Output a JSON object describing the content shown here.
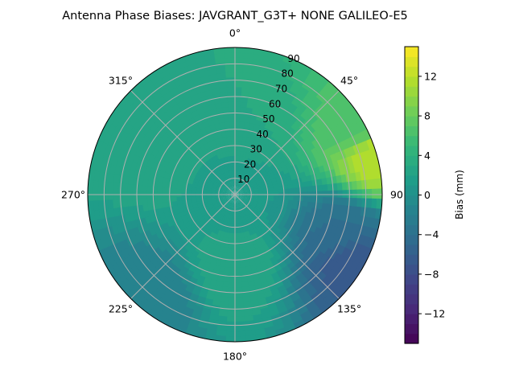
{
  "chart_data": {
    "type": "heatmap",
    "title": "Antenna Phase Biases: JAVGRANT_G3T+   NONE GALILEO-E5",
    "projection": "polar",
    "theta_direction": "clockwise",
    "theta_zero": "north",
    "azimuth_tick_labels": [
      "0°",
      "45°",
      "90",
      "135°",
      "180°",
      "225°",
      "270°",
      "315°"
    ],
    "azimuth_ticks_deg": [
      0,
      45,
      90,
      135,
      180,
      225,
      270,
      315
    ],
    "radial_ticks": [
      10,
      20,
      30,
      40,
      50,
      60,
      70,
      80,
      90
    ],
    "radial_tick_labels": [
      "10",
      "20",
      "30",
      "40",
      "50",
      "60",
      "70",
      "80",
      "90"
    ],
    "rlim": [
      0,
      90
    ],
    "grid": true,
    "colorbar": {
      "label": "Bias (mm)",
      "colormap": "viridis",
      "range": [
        -15,
        15
      ],
      "ticks": [
        12,
        8,
        4,
        0,
        -4,
        -8,
        -12
      ],
      "tick_labels": [
        "12",
        "8",
        "4",
        "0",
        "−4",
        "−8",
        "−12"
      ],
      "levels": 30
    },
    "field_features": [
      {
        "azimuth": 75,
        "zenith": 88,
        "bias": 12
      },
      {
        "azimuth": 60,
        "zenith": 85,
        "bias": 6
      },
      {
        "azimuth": 120,
        "zenith": 82,
        "bias": -7
      },
      {
        "azimuth": 110,
        "zenith": 70,
        "bias": -4
      },
      {
        "azimuth": 10,
        "zenith": 45,
        "bias": 3
      },
      {
        "azimuth": 300,
        "zenith": 55,
        "bias": 3
      },
      {
        "azimuth": 180,
        "zenith": 45,
        "bias": 3
      },
      {
        "azimuth": 220,
        "zenith": 80,
        "bias": -2
      },
      {
        "azimuth": 0,
        "zenith": 0,
        "bias": 1
      }
    ]
  }
}
